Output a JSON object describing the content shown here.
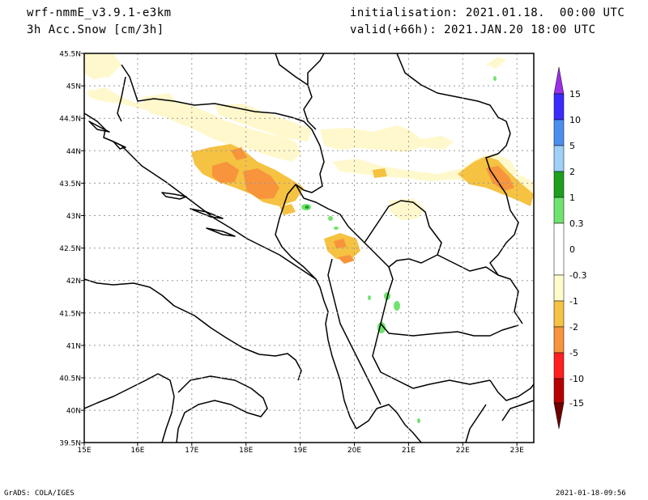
{
  "header": {
    "model": "wrf-nmmE_v3.9.1-e3km",
    "variable": "3h Acc.Snow [cm/3h]",
    "init": "initialisation: 2021.01.18.  00:00 UTC",
    "valid": "valid(+66h): 2021.JAN.20 18:00 UTC"
  },
  "map": {
    "lat_ticks": [
      "45.5N",
      "45N",
      "44.5N",
      "44N",
      "43.5N",
      "43N",
      "42.5N",
      "42N",
      "41.5N",
      "41N",
      "40.5N",
      "40N",
      "39.5N"
    ],
    "lon_ticks": [
      "15E",
      "16E",
      "17E",
      "18E",
      "19E",
      "20E",
      "21E",
      "22E",
      "23E"
    ],
    "lat_range": [
      39.5,
      45.5
    ],
    "lon_range": [
      15,
      23.3
    ],
    "grid": true,
    "precip_colors": {
      "light": "#fff8cc",
      "moderate": "#f5c242",
      "heavy": "#f7943c",
      "green": "#6fe36f",
      "dark_green": "#1ea01e"
    }
  },
  "colorbar": {
    "labels": [
      "15",
      "10",
      "5",
      "2",
      "1",
      "0.3",
      "0",
      "-0.3",
      "-1",
      "-2",
      "-5",
      "-10",
      "-15"
    ],
    "colors": [
      "#6b2bd6",
      "#3a2bff",
      "#4a8ff0",
      "#9ed0f8",
      "#1ea01e",
      "#6fe36f",
      "#ffffff",
      "#fffccc",
      "#f5c242",
      "#f7943c",
      "#ff2020",
      "#b80000",
      "#6e0000"
    ]
  },
  "footer": {
    "left": "GrADS: COLA/IGES",
    "right": "2021-01-18-09:56"
  }
}
